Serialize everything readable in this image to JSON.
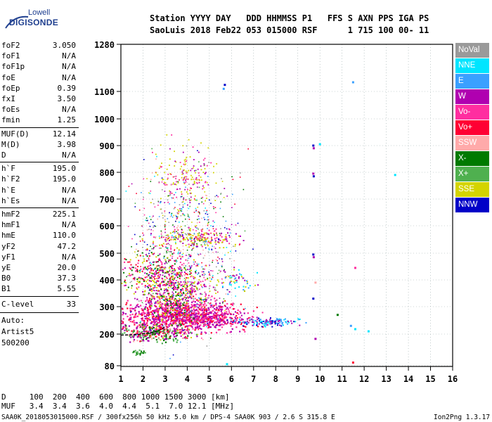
{
  "logo": {
    "line1": "Lowell",
    "line2": "DIGISONDE"
  },
  "header": {
    "labels": "Station YYYY DAY   DDD HHMMSS P1   FFS S AXN PPS IGA PS",
    "values": "SaoLuis 2018 Feb22 053 015000 RSF      1 715 100 00- 11"
  },
  "parameters_a": [
    {
      "label": "foF2",
      "value": "3.050"
    },
    {
      "label": "foF1",
      "value": "N/A"
    },
    {
      "label": "foF1p",
      "value": "N/A"
    },
    {
      "label": "foE",
      "value": "N/A"
    },
    {
      "label": "foEp",
      "value": "0.39"
    },
    {
      "label": "fxI",
      "value": "3.50"
    },
    {
      "label": "foEs",
      "value": "N/A"
    },
    {
      "label": "fmin",
      "value": "1.25"
    }
  ],
  "parameters_b": [
    {
      "label": "MUF(D)",
      "value": "12.14"
    },
    {
      "label": "M(D)",
      "value": "3.98"
    },
    {
      "label": "D",
      "value": "N/A"
    }
  ],
  "parameters_c": [
    {
      "label": "h`F",
      "value": "195.0"
    },
    {
      "label": "h`F2",
      "value": "195.0"
    },
    {
      "label": "h`E",
      "value": "N/A"
    },
    {
      "label": "h`Es",
      "value": "N/A"
    }
  ],
  "parameters_d": [
    {
      "label": "hmF2",
      "value": "225.1"
    },
    {
      "label": "hmF1",
      "value": "N/A"
    },
    {
      "label": "hmE",
      "value": "110.0"
    },
    {
      "label": "yF2",
      "value": "47.2"
    },
    {
      "label": "yF1",
      "value": "N/A"
    },
    {
      "label": "yE",
      "value": "20.0"
    },
    {
      "label": "B0",
      "value": "37.3"
    },
    {
      "label": "B1",
      "value": "5.55"
    }
  ],
  "c_level": {
    "label": "C-level",
    "value": "33"
  },
  "autoscaling": {
    "line1": "Auto:",
    "line2": "Artist5",
    "line3": "500200"
  },
  "legend": [
    {
      "name": "NoVal",
      "color": "#9a9a9a"
    },
    {
      "name": "NNE",
      "color": "#00e5ff"
    },
    {
      "name": "E",
      "color": "#3aa0ff"
    },
    {
      "name": "W",
      "color": "#b000b0"
    },
    {
      "name": "Vo-",
      "color": "#ff2ea0"
    },
    {
      "name": "Vo+",
      "color": "#ff0033"
    },
    {
      "name": "SSW",
      "color": "#ffaaaa"
    },
    {
      "name": "X-",
      "color": "#007a00"
    },
    {
      "name": "X+",
      "color": "#4fb04f"
    },
    {
      "name": "SSE",
      "color": "#d4d400"
    },
    {
      "name": "NNW",
      "color": "#0000c8"
    }
  ],
  "footer": {
    "distance_row": "D     100  200  400  600  800 1000 1500 3000 [km]",
    "muf_row": "MUF   3.4  3.4  3.6  4.0  4.4  5.1  7.0 12.1 [MHz]",
    "bottom_line": "SAA0K_2018053015000.RSF / 300fx256h 50 kHz 5.0 km / DPS-4 SAA0K 903 / 2.6 S 315.8 E",
    "version": "Ion2Png 1.3.17"
  },
  "chart_data": {
    "type": "scatter",
    "xlim": [
      1,
      16
    ],
    "ylim": [
      80,
      1280
    ],
    "x_ticks": [
      "1",
      "2",
      "3",
      "4",
      "5",
      "6",
      "7",
      "8",
      "9",
      "10",
      "11",
      "12",
      "13",
      "14",
      "15",
      "16"
    ],
    "y_ticks": [
      "80",
      "200",
      "300",
      "400",
      "500",
      "600",
      "700",
      "800",
      "900",
      "1000",
      "1100",
      "1280"
    ],
    "trace": [
      {
        "f": 1.0,
        "h": 196
      },
      {
        "f": 1.4,
        "h": 197
      },
      {
        "f": 1.8,
        "h": 199
      },
      {
        "f": 2.2,
        "h": 203
      },
      {
        "f": 2.6,
        "h": 210
      },
      {
        "f": 2.85,
        "h": 218
      },
      {
        "f": 3.0,
        "h": 228
      }
    ],
    "isolated_points": [
      {
        "f": 5.7,
        "h": 1125,
        "c": "#0000c8"
      },
      {
        "f": 5.65,
        "h": 1110,
        "c": "#3aa0ff"
      },
      {
        "f": 11.5,
        "h": 1135,
        "c": "#3aa0ff"
      },
      {
        "f": 9.7,
        "h": 900,
        "c": "#0000c8"
      },
      {
        "f": 9.72,
        "h": 890,
        "c": "#b000b0"
      },
      {
        "f": 10.0,
        "h": 905,
        "c": "#00e5ff"
      },
      {
        "f": 9.7,
        "h": 795,
        "c": "#b000b0"
      },
      {
        "f": 9.72,
        "h": 785,
        "c": "#0000c8"
      },
      {
        "f": 13.4,
        "h": 790,
        "c": "#00e5ff"
      },
      {
        "f": 9.7,
        "h": 495,
        "c": "#0000c8"
      },
      {
        "f": 9.72,
        "h": 485,
        "c": "#b000b0"
      },
      {
        "f": 11.6,
        "h": 445,
        "c": "#ff2ea0"
      },
      {
        "f": 9.8,
        "h": 390,
        "c": "#ffaaaa"
      },
      {
        "f": 9.7,
        "h": 330,
        "c": "#0000c8"
      },
      {
        "f": 11.4,
        "h": 230,
        "c": "#3aa0ff"
      },
      {
        "f": 11.6,
        "h": 218,
        "c": "#00e5ff"
      },
      {
        "f": 10.8,
        "h": 270,
        "c": "#007a00"
      },
      {
        "f": 12.2,
        "h": 210,
        "c": "#00e5ff"
      },
      {
        "f": 9.8,
        "h": 182,
        "c": "#b000b0"
      },
      {
        "f": 11.5,
        "h": 92,
        "c": "#ff0033"
      },
      {
        "f": 5.8,
        "h": 86,
        "c": "#00e5ff"
      }
    ]
  }
}
